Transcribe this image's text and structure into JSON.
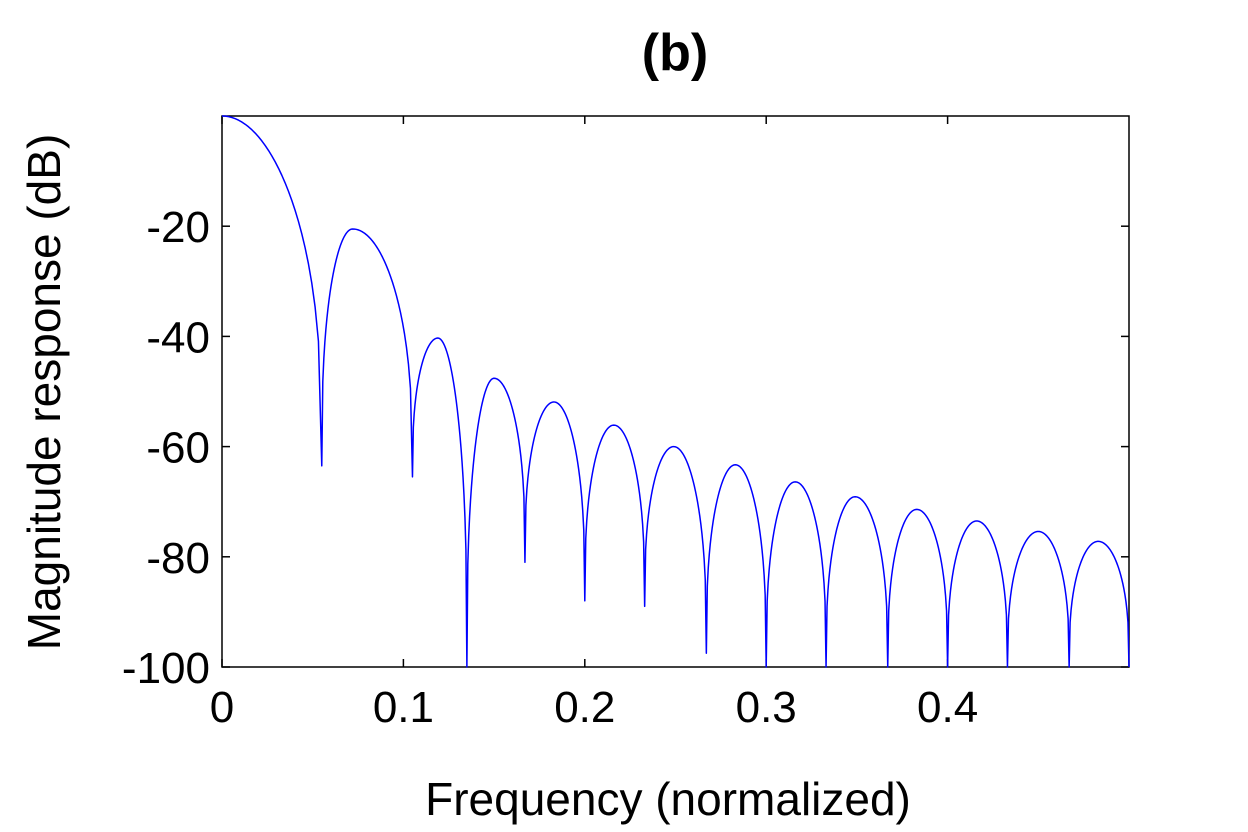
{
  "chart_data": {
    "type": "line",
    "title": "(b)",
    "xlabel": "Frequency (normalized)",
    "ylabel": "Magnitude response (dB)",
    "xlim": [
      0,
      0.5
    ],
    "ylim": [
      -100,
      0
    ],
    "xticks": [
      0,
      0.1,
      0.2,
      0.3,
      0.4
    ],
    "xtick_labels": [
      "0",
      "0.1",
      "0.2",
      "0.3",
      "0.4"
    ],
    "yticks": [
      -20,
      -40,
      -60,
      -80,
      -100
    ],
    "ytick_labels": [
      "-20",
      "-40",
      "-60",
      "-80",
      "-100"
    ],
    "grid": false,
    "series": [
      {
        "name": "magnitude response",
        "color": "#0000ff",
        "start": [
          0,
          0
        ],
        "nulls": [
          [
            0.055,
            -63.5
          ],
          [
            0.105,
            -65.5
          ],
          [
            0.135,
            -100
          ],
          [
            0.167,
            -81
          ],
          [
            0.2,
            -88
          ],
          [
            0.233,
            -89
          ],
          [
            0.267,
            -97.5
          ],
          [
            0.3,
            -100
          ],
          [
            0.333,
            -100
          ],
          [
            0.367,
            -100
          ],
          [
            0.4,
            -100
          ],
          [
            0.433,
            -100
          ],
          [
            0.467,
            -100
          ],
          [
            0.5,
            -100
          ]
        ],
        "peaks": [
          [
            0.072,
            -20.5
          ],
          [
            0.119,
            -40.3
          ],
          [
            0.15,
            -47.6
          ],
          [
            0.183,
            -51.9
          ],
          [
            0.216,
            -56.1
          ],
          [
            0.249,
            -60
          ],
          [
            0.283,
            -63.3
          ],
          [
            0.316,
            -66.4
          ],
          [
            0.349,
            -69.1
          ],
          [
            0.383,
            -71.4
          ],
          [
            0.416,
            -73.5
          ],
          [
            0.45,
            -75.4
          ],
          [
            0.483,
            -77.2
          ]
        ]
      }
    ]
  }
}
